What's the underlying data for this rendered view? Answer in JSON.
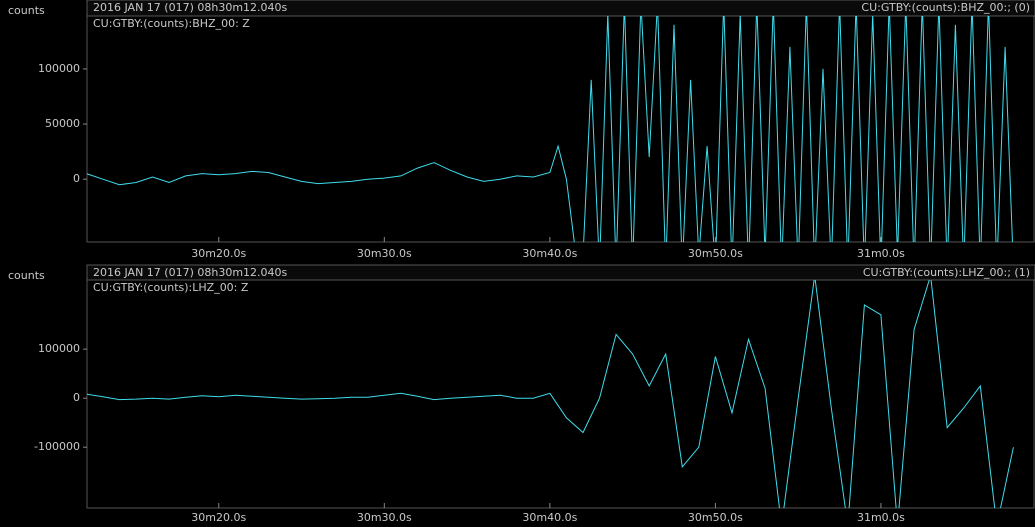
{
  "chart_data": [
    {
      "type": "line",
      "ylabel": "counts",
      "title": "2016 JAN 17 (017)  08h30m12.040s",
      "station": "CU:GTBY:(counts):BHZ_00:; (0)",
      "trace_label": "CU:GTBY:(counts):BHZ_00: Z",
      "color": "#3fdcec",
      "x": [
        12,
        13,
        14,
        15,
        16,
        17,
        18,
        19,
        20,
        21,
        22,
        23,
        24,
        25,
        26,
        27,
        28,
        29,
        30,
        31,
        32,
        33,
        34,
        35,
        36,
        37,
        38,
        39,
        40,
        40.5,
        41,
        41.5,
        42,
        42.5,
        43,
        43.5,
        44,
        44.5,
        45,
        45.5,
        46,
        46.5,
        47,
        47.5,
        48,
        48.5,
        49,
        49.5,
        50,
        50.5,
        51,
        51.5,
        52,
        52.5,
        53,
        53.5,
        54,
        54.5,
        55,
        55.5,
        56,
        56.5,
        57,
        57.5,
        58,
        58.5,
        59,
        59.5,
        60,
        60.5,
        61,
        61.5,
        62,
        62.5,
        63,
        63.5,
        64,
        64.5,
        65,
        65.5,
        66,
        66.5,
        67,
        67.5,
        68
      ],
      "values": [
        5000,
        0,
        -5000,
        -3000,
        2000,
        -3000,
        3000,
        5000,
        4000,
        5000,
        7000,
        6000,
        2000,
        -2000,
        -4000,
        -3000,
        -2000,
        0,
        1000,
        3000,
        10000,
        15000,
        8000,
        2000,
        -2000,
        0,
        3000,
        2000,
        6000,
        30000,
        0,
        -60000,
        -70000,
        90000,
        -80000,
        150000,
        -80000,
        160000,
        -80000,
        160000,
        20000,
        160000,
        -80000,
        140000,
        -80000,
        90000,
        -70000,
        30000,
        -80000,
        160000,
        -80000,
        150000,
        -80000,
        160000,
        -70000,
        160000,
        -80000,
        120000,
        -80000,
        160000,
        -80000,
        100000,
        -80000,
        160000,
        -80000,
        160000,
        -80000,
        150000,
        -80000,
        160000,
        -70000,
        160000,
        -80000,
        160000,
        -80000,
        160000,
        -80000,
        140000,
        -80000,
        160000,
        -80000,
        160000,
        -80000,
        120000,
        -80000
      ],
      "xlim": [
        12.04,
        68.4
      ],
      "ylim": [
        -57000,
        148000
      ],
      "yticks": [
        0,
        50000,
        100000
      ],
      "xticks": [
        {
          "value": 20,
          "label": "30m20.0s"
        },
        {
          "value": 30,
          "label": "30m30.0s"
        },
        {
          "value": 40,
          "label": "30m40.0s"
        },
        {
          "value": 50,
          "label": "30m50.0s"
        },
        {
          "value": 60,
          "label": "31m0.0s"
        }
      ]
    },
    {
      "type": "line",
      "ylabel": "counts",
      "title": "2016 JAN 17 (017)  08h30m12.040s",
      "station": "CU:GTBY:(counts):LHZ_00:; (1)",
      "trace_label": "CU:GTBY:(counts):LHZ_00: Z",
      "color": "#3fdcec",
      "x": [
        12,
        13,
        14,
        15,
        16,
        17,
        18,
        19,
        20,
        21,
        22,
        23,
        24,
        25,
        26,
        27,
        28,
        29,
        30,
        31,
        32,
        33,
        34,
        35,
        36,
        37,
        38,
        39,
        40,
        41,
        42,
        43,
        44,
        45,
        46,
        47,
        48,
        49,
        50,
        51,
        52,
        53,
        54,
        55,
        56,
        57,
        58,
        59,
        60,
        61,
        62,
        63,
        64,
        65,
        66,
        67,
        68
      ],
      "values": [
        8000,
        3000,
        -3000,
        -2000,
        0,
        -2000,
        2000,
        5000,
        3000,
        6000,
        4000,
        2000,
        0,
        -2000,
        -1000,
        0,
        2000,
        2000,
        6000,
        10000,
        4000,
        -3000,
        0,
        2000,
        4000,
        6000,
        0,
        0,
        10000,
        -40000,
        -70000,
        0,
        130000,
        90000,
        25000,
        90000,
        -140000,
        -100000,
        85000,
        -30000,
        120000,
        20000,
        -260000,
        0,
        250000,
        -20000,
        -260000,
        190000,
        170000,
        -260000,
        140000,
        250000,
        -60000,
        -20000,
        25000,
        -260000,
        -100000
      ],
      "xlim": [
        12.04,
        68.4
      ],
      "ylim": [
        -224000,
        241000
      ],
      "yticks": [
        -100000,
        0,
        100000
      ],
      "xticks": [
        {
          "value": 20,
          "label": "30m20.0s"
        },
        {
          "value": 30,
          "label": "30m30.0s"
        },
        {
          "value": 40,
          "label": "30m40.0s"
        },
        {
          "value": 50,
          "label": "30m50.0s"
        },
        {
          "value": 60,
          "label": "31m0.0s"
        }
      ]
    }
  ]
}
